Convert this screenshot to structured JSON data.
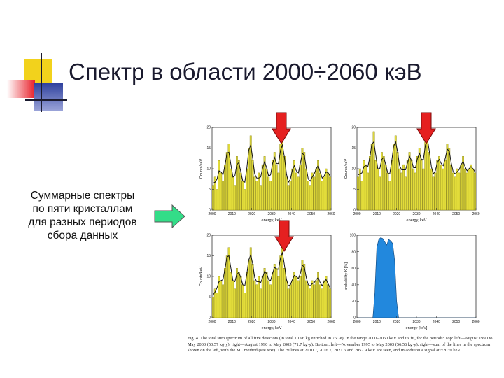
{
  "slide": {
    "title": "Спектр в области 2000÷2060 кэВ",
    "side_text": [
      "Суммарные спектры",
      "по пяти кристаллам",
      "для разных периодов",
      "сбора данных"
    ],
    "caption": "Fig. 4. The total sum spectrum of all five detectors (in total 10.96 kg enriched in 76Ge), in the range 2000–2060 keV and its fit, for the periods: Top: left—August 1990 to May 2000 (50.57 kg·y); right—August 1990 to May 2003 (71.7 kg·y). Bottom: left—November 1995 to May 2003 (56.56 kg·y); right—sum of the lines in the spectrum shown on the left, with the ML method (see text). The Bi lines at 2010.7, 2016.7, 2021.6 and 2052.9 keV are seen, and in addition a signal at ~2039 keV."
  },
  "colors": {
    "bar_fill": "#e2dc3a",
    "bar_stroke": "#8a8410",
    "red_arrow": "#e52020",
    "green_arrow": "#33dd88",
    "prob_fill": "#2288dd",
    "deco_yellow": "#f2d21c",
    "deco_blue": "#2d3f9c",
    "deco_red": "#e8202a"
  },
  "chart_data": [
    {
      "type": "bar",
      "panel": "top-left",
      "xlabel": "energy, keV",
      "ylabel": "Counts/keV",
      "xlim": [
        2000,
        2060
      ],
      "ylim": [
        0,
        20
      ],
      "xticks": [
        "2000",
        "2010",
        "2020",
        "2030",
        "2040",
        "2050",
        "2060"
      ],
      "yticks": [
        "0",
        "5",
        "10",
        "15",
        "20"
      ],
      "values": [
        6,
        8,
        5,
        12,
        9,
        7,
        11,
        14,
        16,
        10,
        8,
        6,
        13,
        12,
        9,
        7,
        5,
        10,
        15,
        18,
        12,
        8,
        7,
        9,
        6,
        11,
        13,
        10,
        8,
        7,
        12,
        14,
        11,
        9,
        16,
        17,
        13,
        8,
        6,
        7,
        10,
        12,
        9,
        8,
        11,
        15,
        14,
        10,
        7,
        6,
        9,
        8,
        10,
        12,
        9,
        7,
        8,
        10,
        9,
        8
      ]
    },
    {
      "type": "bar",
      "panel": "top-right",
      "xlabel": "energy, keV",
      "ylabel": "Counts/keV",
      "xlim": [
        2000,
        2060
      ],
      "ylim": [
        0,
        20
      ],
      "xticks": [
        "2000",
        "2010",
        "2020",
        "2030",
        "2040",
        "2050",
        "2060"
      ],
      "yticks": [
        "0",
        "5",
        "10",
        "15",
        "20"
      ],
      "values": [
        8,
        10,
        7,
        12,
        11,
        9,
        13,
        16,
        19,
        12,
        10,
        8,
        14,
        13,
        11,
        9,
        7,
        12,
        16,
        18,
        14,
        10,
        9,
        11,
        8,
        12,
        14,
        12,
        10,
        9,
        13,
        15,
        12,
        10,
        17,
        19,
        14,
        10,
        8,
        9,
        12,
        13,
        11,
        10,
        12,
        16,
        15,
        11,
        9,
        8,
        10,
        9,
        11,
        13,
        10,
        9,
        10,
        11,
        10,
        9
      ]
    },
    {
      "type": "bar",
      "panel": "bottom-left",
      "xlabel": "energy, keV",
      "ylabel": "Counts/keV",
      "xlim": [
        2000,
        2060
      ],
      "ylim": [
        0,
        20
      ],
      "xticks": [
        "2000",
        "2010",
        "2020",
        "2030",
        "2040",
        "2050",
        "2060"
      ],
      "yticks": [
        "0",
        "5",
        "10",
        "15",
        "20"
      ],
      "values": [
        5,
        7,
        6,
        10,
        9,
        8,
        12,
        15,
        17,
        11,
        9,
        7,
        12,
        11,
        10,
        8,
        6,
        11,
        14,
        17,
        13,
        9,
        8,
        10,
        7,
        10,
        12,
        11,
        9,
        8,
        11,
        13,
        12,
        10,
        15,
        18,
        12,
        9,
        7,
        8,
        9,
        11,
        10,
        9,
        10,
        14,
        13,
        9,
        8,
        7,
        9,
        8,
        9,
        11,
        8,
        7,
        9,
        10,
        8,
        7
      ]
    },
    {
      "type": "area",
      "panel": "bottom-right",
      "xlabel": "energy [keV]",
      "ylabel": "probability K [%]",
      "xlim": [
        2000,
        2060
      ],
      "ylim": [
        0,
        100
      ],
      "xticks": [
        "2000",
        "2010",
        "2020",
        "2030",
        "2040",
        "2050",
        "2060"
      ],
      "yticks": [
        "0",
        "20",
        "40",
        "60",
        "80",
        "100"
      ],
      "x": [
        2000,
        2004,
        2006,
        2008,
        2009,
        2010,
        2011,
        2012,
        2013,
        2014,
        2015,
        2016,
        2017,
        2018,
        2019,
        2020,
        2021,
        2022,
        2023,
        2024,
        2025,
        2026,
        2027,
        2028,
        2029,
        2030,
        2031,
        2032,
        2033,
        2034,
        2035,
        2036,
        2037,
        2038,
        2039,
        2040,
        2041,
        2042,
        2043,
        2044,
        2045,
        2046,
        2047,
        2048,
        2049,
        2050,
        2051,
        2052,
        2053,
        2054,
        2055,
        2056,
        2060
      ],
      "y": [
        0,
        0,
        0,
        0,
        30,
        85,
        95,
        97,
        96,
        92,
        88,
        95,
        93,
        90,
        70,
        20,
        0,
        0,
        0,
        0,
        0,
        0,
        0,
        0,
        0,
        0,
        0,
        0,
        0,
        0,
        0,
        0,
        0,
        0,
        0,
        0,
        0,
        0,
        0,
        0,
        0,
        0,
        0,
        0,
        0,
        0,
        0,
        0,
        0,
        0,
        0,
        0,
        0
      ]
    }
  ]
}
